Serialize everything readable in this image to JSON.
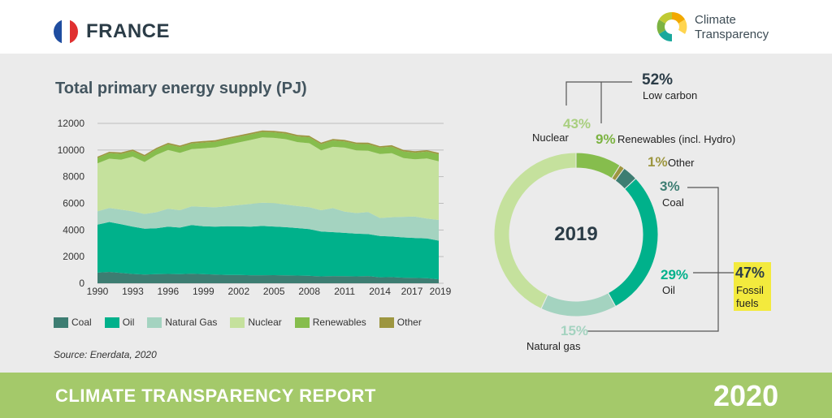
{
  "header": {
    "country": "FRANCE",
    "logo_line1": "Climate",
    "logo_line2": "Transparency"
  },
  "footer": {
    "title": "CLIMATE TRANSPARENCY REPORT",
    "year": "2020"
  },
  "source": "Source: Enerdata, 2020",
  "chart_data": [
    {
      "type": "area",
      "title": "Total primary energy supply (PJ)",
      "ylim": [
        0,
        12000
      ],
      "yticks": [
        0,
        2000,
        4000,
        6000,
        8000,
        10000,
        12000
      ],
      "ytick_labels": [
        "0",
        "2000",
        "4000",
        "6000",
        "8000",
        "10000",
        "12000"
      ],
      "xticks": [
        1990,
        1993,
        1996,
        1999,
        2002,
        2005,
        2008,
        2011,
        2014,
        2017,
        2019
      ],
      "grid": true,
      "x": [
        1990,
        1991,
        1992,
        1993,
        1994,
        1995,
        1996,
        1997,
        1998,
        1999,
        2000,
        2001,
        2002,
        2003,
        2004,
        2005,
        2006,
        2007,
        2008,
        2009,
        2010,
        2011,
        2012,
        2013,
        2014,
        2015,
        2016,
        2017,
        2018,
        2019
      ],
      "series": [
        {
          "name": "Coal",
          "color": "#3d7d72",
          "values": [
            800,
            850,
            780,
            700,
            650,
            680,
            700,
            680,
            720,
            680,
            650,
            630,
            620,
            600,
            600,
            610,
            590,
            580,
            560,
            520,
            540,
            530,
            520,
            540,
            450,
            460,
            420,
            400,
            380,
            300
          ]
        },
        {
          "name": "Oil",
          "color": "#00b18b",
          "values": [
            3600,
            3750,
            3650,
            3550,
            3450,
            3450,
            3550,
            3500,
            3650,
            3600,
            3600,
            3650,
            3650,
            3650,
            3700,
            3650,
            3620,
            3560,
            3500,
            3360,
            3300,
            3250,
            3200,
            3150,
            3100,
            3050,
            3020,
            3000,
            2980,
            2900
          ]
        },
        {
          "name": "Natural Gas",
          "color": "#a4d3c0",
          "values": [
            1000,
            1050,
            1100,
            1150,
            1100,
            1200,
            1350,
            1300,
            1400,
            1450,
            1450,
            1500,
            1600,
            1700,
            1750,
            1750,
            1700,
            1650,
            1650,
            1600,
            1800,
            1600,
            1550,
            1650,
            1350,
            1450,
            1550,
            1600,
            1500,
            1550
          ]
        },
        {
          "name": "Nuclear",
          "color": "#c5e19d",
          "values": [
            3600,
            3700,
            3750,
            4100,
            3900,
            4300,
            4400,
            4300,
            4300,
            4400,
            4500,
            4600,
            4700,
            4800,
            4900,
            4900,
            4900,
            4800,
            4800,
            4500,
            4600,
            4800,
            4700,
            4600,
            4800,
            4800,
            4400,
            4300,
            4500,
            4400
          ]
        },
        {
          "name": "Renewables",
          "color": "#86bd4d",
          "values": [
            400,
            420,
            430,
            420,
            420,
            420,
            430,
            440,
            420,
            430,
            420,
            440,
            420,
            420,
            410,
            420,
            420,
            430,
            450,
            460,
            480,
            470,
            480,
            500,
            480,
            490,
            500,
            500,
            520,
            530
          ]
        },
        {
          "name": "Other",
          "color": "#9d9640",
          "values": [
            100,
            100,
            110,
            110,
            110,
            110,
            110,
            110,
            110,
            110,
            110,
            110,
            110,
            110,
            110,
            110,
            110,
            110,
            110,
            110,
            110,
            110,
            110,
            110,
            110,
            110,
            110,
            110,
            110,
            110
          ]
        }
      ]
    },
    {
      "type": "pie",
      "center_label": "2019",
      "slices": [
        {
          "label": "Nuclear",
          "pct": "43%",
          "value": 43,
          "color": "#c5e19d",
          "text_color": "#a9cf7f"
        },
        {
          "label": "Renewables (incl. Hydro)",
          "pct": "9%",
          "value": 9,
          "color": "#86bd4d",
          "text_color": "#7cb342"
        },
        {
          "label": "Other",
          "pct": "1%",
          "value": 1,
          "color": "#9d9640",
          "text_color": "#9d9640"
        },
        {
          "label": "Coal",
          "pct": "3%",
          "value": 3,
          "color": "#3d7d72",
          "text_color": "#3d7d72"
        },
        {
          "label": "Oil",
          "pct": "29%",
          "value": 29,
          "color": "#00b18b",
          "text_color": "#00b18b"
        },
        {
          "label": "Natural gas",
          "pct": "15%",
          "value": 15,
          "color": "#a4d3c0",
          "text_color": "#a4d3c0"
        }
      ],
      "annotations": {
        "low_carbon_pct": "52%",
        "low_carbon_label": "Low carbon",
        "fossil_pct": "47%",
        "fossil_label_1": "Fossil",
        "fossil_label_2": "fuels"
      }
    }
  ]
}
